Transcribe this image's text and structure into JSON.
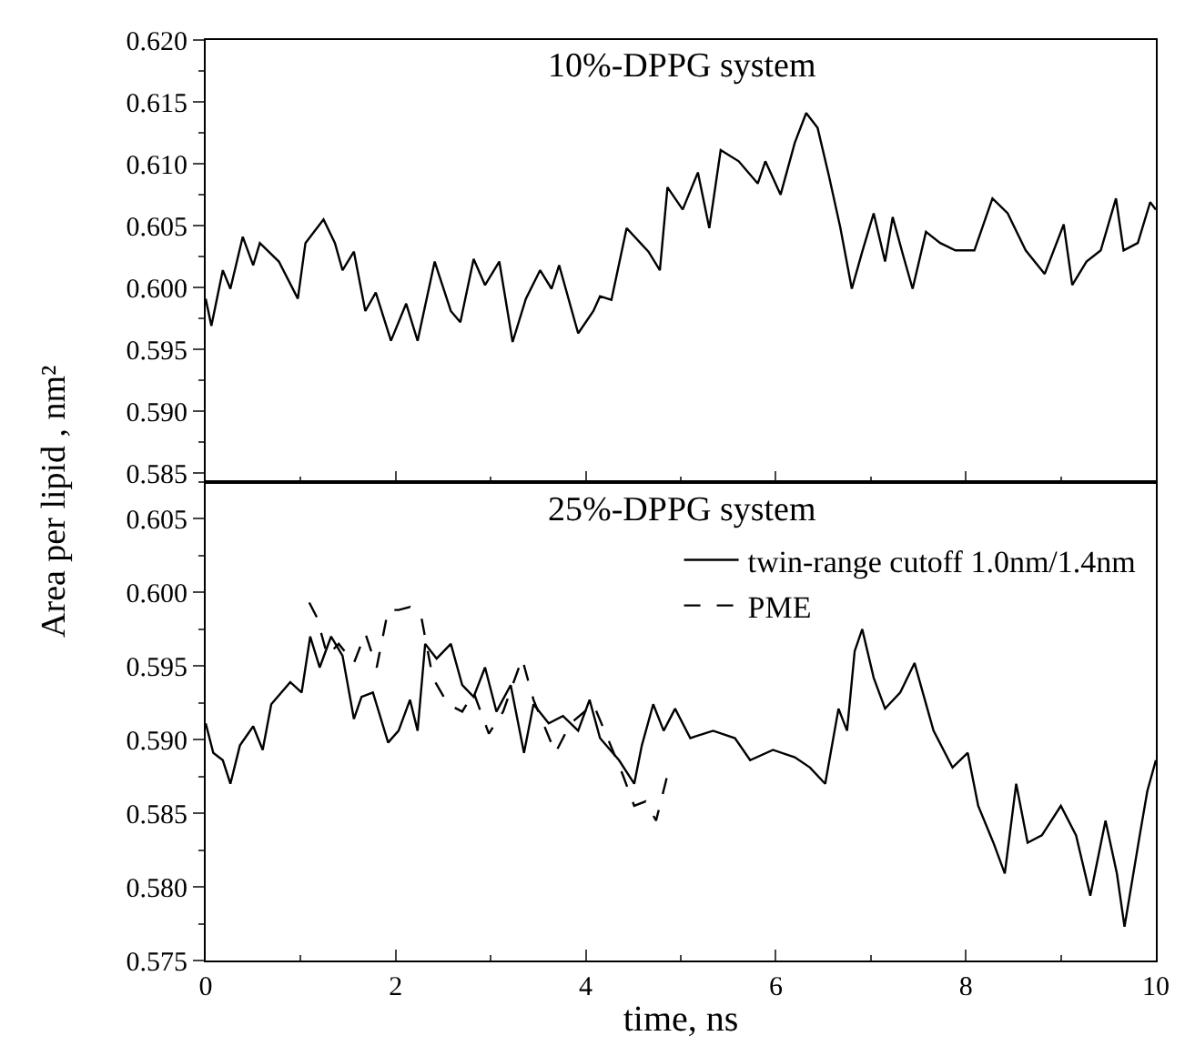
{
  "chart_data": [
    {
      "type": "line",
      "title": "10%-DPPG system",
      "ylabel": "Area per lipid , nm²",
      "xlim": [
        0,
        10
      ],
      "xticks": [
        0,
        2,
        4,
        6,
        8,
        10
      ],
      "ylim": [
        0.5843,
        0.62
      ],
      "yticks": [
        {
          "value": 0.585,
          "label": "0.585"
        },
        {
          "value": 0.59,
          "label": "0.590"
        },
        {
          "value": 0.595,
          "label": "0.595"
        },
        {
          "value": 0.6,
          "label": "0.600"
        },
        {
          "value": 0.605,
          "label": "0.605"
        },
        {
          "value": 0.61,
          "label": "0.610"
        },
        {
          "value": 0.615,
          "label": "0.615"
        },
        {
          "value": 0.62,
          "label": "0.620"
        }
      ],
      "tick_labels": "y",
      "grid": false,
      "legend": false,
      "series": [
        {
          "color": "#000000",
          "line_style": "solid",
          "x": [
            0,
            0.06,
            0.18,
            0.26,
            0.39,
            0.5,
            0.57,
            0.77,
            0.97,
            1.05,
            1.24,
            1.36,
            1.44,
            1.56,
            1.68,
            1.79,
            1.95,
            2.11,
            2.23,
            2.41,
            2.58,
            2.68,
            2.82,
            2.94,
            3.09,
            3.23,
            3.37,
            3.52,
            3.64,
            3.72,
            3.92,
            4.08,
            4.15,
            4.27,
            4.43,
            4.66,
            4.78,
            4.86,
            5.02,
            5.18,
            5.3,
            5.42,
            5.61,
            5.81,
            5.89,
            6.05,
            6.2,
            6.32,
            6.44,
            6.56,
            6.68,
            6.8,
            6.91,
            7.03,
            7.15,
            7.23,
            7.34,
            7.44,
            7.58,
            7.73,
            7.89,
            8.09,
            8.28,
            8.44,
            8.63,
            8.83,
            9.03,
            9.12,
            9.27,
            9.42,
            9.58,
            9.66,
            9.81,
            9.94,
            10
          ],
          "values": [
            0.5991,
            0.5969,
            0.6014,
            0.5999,
            0.6041,
            0.6018,
            0.6036,
            0.6021,
            0.5991,
            0.6036,
            0.6055,
            0.6036,
            0.6014,
            0.6029,
            0.5981,
            0.5996,
            0.5957,
            0.5987,
            0.5957,
            0.6021,
            0.5981,
            0.5972,
            0.6023,
            0.6002,
            0.6021,
            0.5956,
            0.5991,
            0.6014,
            0.5999,
            0.6018,
            0.5963,
            0.5981,
            0.5993,
            0.599,
            0.6048,
            0.6029,
            0.6014,
            0.6081,
            0.6063,
            0.6093,
            0.6048,
            0.6111,
            0.6102,
            0.6084,
            0.6102,
            0.6075,
            0.6117,
            0.6141,
            0.6129,
            0.609,
            0.6048,
            0.5999,
            0.6029,
            0.606,
            0.6021,
            0.6057,
            0.6026,
            0.5999,
            0.6045,
            0.6036,
            0.603,
            0.603,
            0.6072,
            0.606,
            0.603,
            0.6011,
            0.6051,
            0.6002,
            0.6021,
            0.603,
            0.6072,
            0.603,
            0.6036,
            0.6069,
            0.6063
          ]
        }
      ]
    },
    {
      "type": "line",
      "title": "25%-DPPG system",
      "xlabel": "time, ns",
      "xlim": [
        0,
        10
      ],
      "xticks": [
        0,
        2,
        4,
        6,
        8,
        10
      ],
      "ylim": [
        0.575,
        0.6075
      ],
      "yticks": [
        {
          "value": 0.575,
          "label": "0.575"
        },
        {
          "value": 0.58,
          "label": "0.580"
        },
        {
          "value": 0.585,
          "label": "0.585"
        },
        {
          "value": 0.59,
          "label": "0.590"
        },
        {
          "value": 0.595,
          "label": "0.595"
        },
        {
          "value": 0.6,
          "label": "0.600"
        },
        {
          "value": 0.605,
          "label": "0.605"
        }
      ],
      "grid": false,
      "legend": "top right",
      "series": [
        {
          "name": "twin-range cutoff 1.0nm/1.4nm",
          "color": "#000000",
          "line_style": "solid",
          "x": [
            0,
            0.08,
            0.18,
            0.26,
            0.36,
            0.5,
            0.6,
            0.69,
            0.89,
            1.01,
            1.1,
            1.2,
            1.32,
            1.44,
            1.56,
            1.64,
            1.76,
            1.92,
            2.03,
            2.15,
            2.23,
            2.31,
            2.43,
            2.58,
            2.7,
            2.82,
            2.94,
            3.06,
            3.21,
            3.35,
            3.45,
            3.61,
            3.76,
            3.92,
            4.04,
            4.15,
            4.35,
            4.51,
            4.59,
            4.71,
            4.82,
            4.94,
            5.1,
            5.34,
            5.57,
            5.73,
            5.97,
            6.2,
            6.36,
            6.52,
            6.66,
            6.75,
            6.83,
            6.91,
            7.03,
            7.15,
            7.31,
            7.46,
            7.66,
            7.86,
            8.02,
            8.13,
            8.29,
            8.41,
            8.53,
            8.65,
            8.8,
            9.0,
            9.16,
            9.31,
            9.47,
            9.59,
            9.67,
            9.83,
            9.91,
            10
          ],
          "values": [
            0.5911,
            0.5891,
            0.5886,
            0.587,
            0.5896,
            0.5909,
            0.5893,
            0.5924,
            0.5939,
            0.5932,
            0.597,
            0.5949,
            0.597,
            0.5957,
            0.5914,
            0.5929,
            0.5932,
            0.5898,
            0.5906,
            0.5927,
            0.5906,
            0.5965,
            0.5955,
            0.5965,
            0.5937,
            0.5929,
            0.5949,
            0.5919,
            0.5937,
            0.5891,
            0.5924,
            0.5911,
            0.5916,
            0.5906,
            0.5927,
            0.5901,
            0.5886,
            0.587,
            0.5896,
            0.5924,
            0.5906,
            0.5921,
            0.5901,
            0.5906,
            0.5901,
            0.5886,
            0.5893,
            0.5888,
            0.5881,
            0.587,
            0.5921,
            0.5906,
            0.596,
            0.5975,
            0.5942,
            0.5921,
            0.5932,
            0.5952,
            0.5906,
            0.5881,
            0.5891,
            0.5855,
            0.583,
            0.5809,
            0.587,
            0.583,
            0.5835,
            0.5855,
            0.5835,
            0.5794,
            0.5845,
            0.5809,
            0.5773,
            0.5835,
            0.5865,
            0.5886
          ]
        },
        {
          "name": "PME",
          "color": "#000000",
          "line_style": "dashed",
          "x": [
            1.09,
            1.17,
            1.28,
            1.4,
            1.56,
            1.68,
            1.8,
            1.92,
            2.03,
            2.15,
            2.27,
            2.39,
            2.55,
            2.7,
            2.82,
            2.98,
            3.13,
            3.33,
            3.45,
            3.68,
            3.84,
            4.08,
            4.23,
            4.39,
            4.51,
            4.63,
            4.74,
            4.86
          ],
          "values": [
            0.5993,
            0.5983,
            0.5957,
            0.5965,
            0.5952,
            0.5972,
            0.5949,
            0.5988,
            0.5988,
            0.599,
            0.5983,
            0.5942,
            0.5924,
            0.5919,
            0.5932,
            0.5904,
            0.5919,
            0.5955,
            0.5927,
            0.5891,
            0.5911,
            0.5924,
            0.5901,
            0.5876,
            0.5855,
            0.5858,
            0.5845,
            0.5876
          ]
        }
      ]
    }
  ]
}
